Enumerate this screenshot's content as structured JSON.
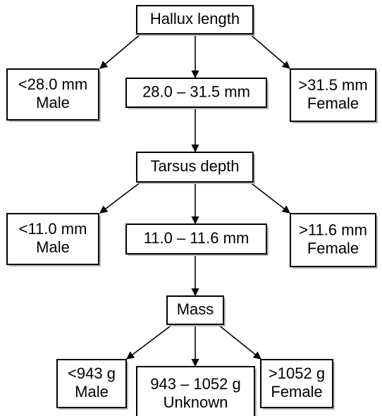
{
  "nodes": [
    {
      "lines": [
        "Hallux length"
      ]
    },
    {
      "lines": [
        "<28.0 mm",
        "Male"
      ]
    },
    {
      "lines": [
        "28.0 – 31.5 mm"
      ]
    },
    {
      "lines": [
        ">31.5 mm",
        "Female"
      ]
    },
    {
      "lines": [
        "Tarsus depth"
      ]
    },
    {
      "lines": [
        "<11.0 mm",
        "Male"
      ]
    },
    {
      "lines": [
        "11.0 – 11.6 mm"
      ]
    },
    {
      "lines": [
        ">11.6 mm",
        "Female"
      ]
    },
    {
      "lines": [
        "Mass"
      ]
    },
    {
      "lines": [
        "<943 g",
        "Male"
      ]
    },
    {
      "lines": [
        "943 – 1052 g",
        "Unknown"
      ]
    },
    {
      "lines": [
        ">1052 g",
        "Female"
      ]
    }
  ]
}
